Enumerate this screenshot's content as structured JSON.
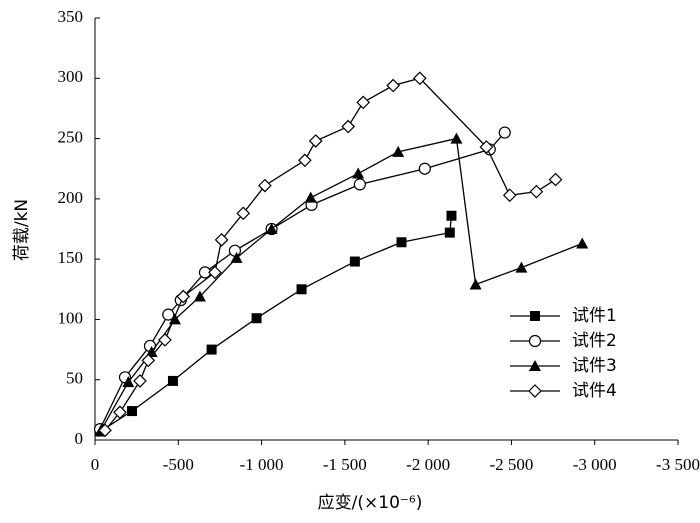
{
  "chart_data": {
    "type": "line",
    "xlabel": "应变/(×10⁻⁶)",
    "ylabel": "荷载/kN",
    "xlim": [
      0,
      -3500
    ],
    "xticks": [
      0,
      -500,
      {
        "value": -1000,
        "label": "-1 000"
      },
      {
        "value": -1500,
        "label": "-1 500"
      },
      {
        "value": -2000,
        "label": "-2 000"
      },
      {
        "value": -2500,
        "label": "-2 500"
      },
      {
        "value": -3000,
        "label": "-3 000"
      },
      {
        "value": -3500,
        "label": "-3 500"
      }
    ],
    "ylim": [
      0,
      350
    ],
    "yticks": [
      0,
      50,
      100,
      150,
      200,
      250,
      300,
      350
    ],
    "legend": "lower right",
    "series": [
      {
        "name": "试件1",
        "color": "#000000",
        "marker": "square",
        "x": [
          -30,
          -222,
          -468,
          -700,
          -970,
          -1240,
          -1560,
          -1840,
          -2130,
          -2140
        ],
        "values": [
          7,
          24,
          49,
          75,
          101,
          125,
          148,
          164,
          172,
          186
        ]
      },
      {
        "name": "试件2",
        "color": "#000000",
        "marker": "circle",
        "x": [
          -30,
          -180,
          -330,
          -440,
          -515,
          -660,
          -840,
          -1060,
          -1300,
          -1590,
          -1980,
          -2370,
          -2460
        ],
        "values": [
          9,
          52,
          78,
          104,
          116,
          139,
          157,
          175,
          195,
          212,
          225,
          241,
          255
        ]
      },
      {
        "name": "试件3",
        "color": "#000000",
        "marker": "triangle",
        "x": [
          -40,
          -200,
          -340,
          -480,
          -630,
          -850,
          -1060,
          -1295,
          -1580,
          -1820,
          -2170,
          -2285,
          -2560,
          -2925
        ],
        "values": [
          9,
          48,
          73,
          100,
          119,
          151,
          175,
          201,
          221,
          239,
          250,
          129,
          143,
          163
        ]
      },
      {
        "name": "试件4",
        "color": "#000000",
        "marker": "diamond",
        "x": [
          -60,
          -150,
          -270,
          -320,
          -420,
          -530,
          -720,
          -760,
          -890,
          -1020,
          -1260,
          -1325,
          -1520,
          -1610,
          -1790,
          -1950,
          -2350,
          -2490,
          -2650,
          -2765
        ],
        "values": [
          8,
          23,
          49,
          66,
          83,
          119,
          139,
          166,
          188,
          211,
          232,
          248,
          260,
          280,
          294,
          300,
          243,
          203,
          206,
          216
        ]
      }
    ]
  }
}
